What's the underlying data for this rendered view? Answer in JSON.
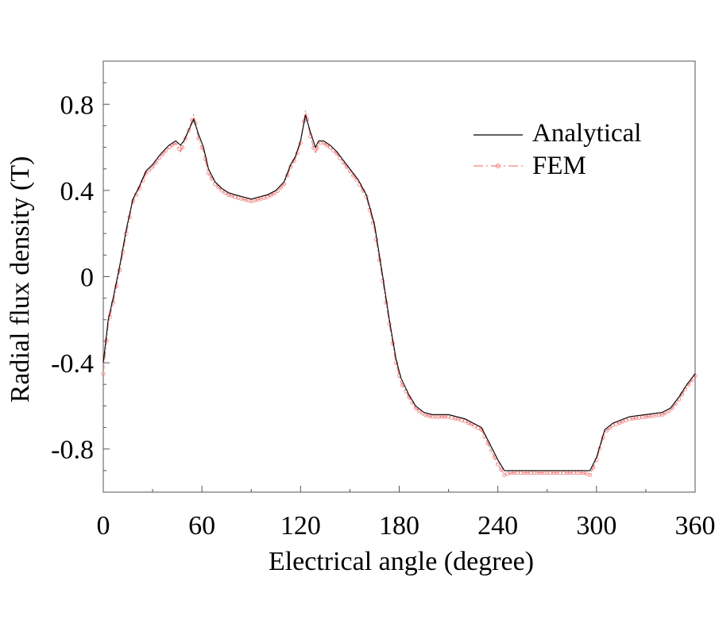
{
  "chart_data": {
    "type": "line",
    "title": "",
    "xlabel": "Electrical angle (degree)",
    "ylabel": "Radial flux density (T)",
    "xlim": [
      0,
      360
    ],
    "ylim": [
      -1.0,
      1.0
    ],
    "x_ticks": [
      0,
      60,
      120,
      180,
      240,
      300,
      360
    ],
    "x_tick_labels": [
      "0",
      "60",
      "120",
      "180",
      "240",
      "300",
      "360"
    ],
    "y_ticks": [
      0.8,
      0.4,
      0,
      -0.4,
      -0.8
    ],
    "y_tick_labels": [
      "0.8",
      "0.4",
      "0",
      "-0.4",
      "-0.8"
    ],
    "grid": false,
    "legend_position": "top-right",
    "series": [
      {
        "name": "Analytical",
        "style": "solid",
        "color": "#000000",
        "x": [
          0,
          3,
          6,
          10,
          14,
          18,
          22,
          26,
          30,
          35,
          40,
          44,
          47,
          49,
          52,
          55,
          58,
          61,
          64,
          68,
          72,
          76,
          80,
          85,
          90,
          95,
          100,
          105,
          110,
          114,
          117,
          120,
          123,
          126,
          129,
          131,
          134,
          138,
          142,
          146,
          150,
          155,
          160,
          165,
          170,
          174,
          178,
          181,
          186,
          190,
          195,
          200,
          210,
          220,
          230,
          240,
          244,
          248,
          255,
          265,
          275,
          285,
          292,
          296,
          300,
          305,
          310,
          320,
          330,
          340,
          345,
          350,
          355,
          360
        ],
        "y": [
          -0.4,
          -0.2,
          -0.1,
          0.05,
          0.22,
          0.36,
          0.42,
          0.49,
          0.52,
          0.57,
          0.61,
          0.63,
          0.61,
          0.63,
          0.68,
          0.73,
          0.66,
          0.6,
          0.5,
          0.44,
          0.41,
          0.39,
          0.38,
          0.37,
          0.36,
          0.37,
          0.38,
          0.4,
          0.44,
          0.52,
          0.56,
          0.63,
          0.75,
          0.67,
          0.6,
          0.63,
          0.63,
          0.61,
          0.58,
          0.54,
          0.5,
          0.45,
          0.38,
          0.24,
          0.0,
          -0.2,
          -0.38,
          -0.47,
          -0.55,
          -0.6,
          -0.63,
          -0.64,
          -0.64,
          -0.66,
          -0.7,
          -0.85,
          -0.9,
          -0.9,
          -0.9,
          -0.9,
          -0.9,
          -0.9,
          -0.9,
          -0.9,
          -0.84,
          -0.71,
          -0.68,
          -0.65,
          -0.64,
          -0.63,
          -0.61,
          -0.56,
          -0.5,
          -0.45
        ]
      },
      {
        "name": "FEM",
        "style": "dash-dot-circle",
        "color": "#f08080",
        "x": [
          0,
          3,
          6,
          10,
          14,
          18,
          22,
          26,
          30,
          35,
          40,
          44,
          47,
          49,
          52,
          55,
          58,
          61,
          64,
          68,
          72,
          76,
          80,
          85,
          90,
          95,
          100,
          105,
          110,
          114,
          117,
          120,
          123,
          126,
          129,
          131,
          134,
          138,
          142,
          146,
          150,
          155,
          160,
          165,
          170,
          174,
          178,
          181,
          186,
          190,
          195,
          200,
          210,
          220,
          230,
          240,
          244,
          248,
          255,
          265,
          275,
          285,
          292,
          296,
          300,
          305,
          310,
          320,
          330,
          340,
          345,
          350,
          355,
          360
        ],
        "y": [
          -0.45,
          -0.22,
          -0.12,
          0.03,
          0.2,
          0.35,
          0.41,
          0.48,
          0.51,
          0.56,
          0.6,
          0.62,
          0.58,
          0.62,
          0.68,
          0.75,
          0.64,
          0.58,
          0.48,
          0.43,
          0.4,
          0.38,
          0.37,
          0.36,
          0.35,
          0.36,
          0.37,
          0.39,
          0.43,
          0.51,
          0.55,
          0.62,
          0.77,
          0.65,
          0.57,
          0.62,
          0.62,
          0.6,
          0.57,
          0.53,
          0.49,
          0.44,
          0.37,
          0.22,
          -0.02,
          -0.22,
          -0.4,
          -0.49,
          -0.56,
          -0.61,
          -0.64,
          -0.65,
          -0.65,
          -0.67,
          -0.71,
          -0.87,
          -0.92,
          -0.91,
          -0.91,
          -0.91,
          -0.91,
          -0.91,
          -0.91,
          -0.92,
          -0.85,
          -0.72,
          -0.69,
          -0.66,
          -0.65,
          -0.64,
          -0.62,
          -0.57,
          -0.51,
          -0.46
        ]
      }
    ]
  }
}
